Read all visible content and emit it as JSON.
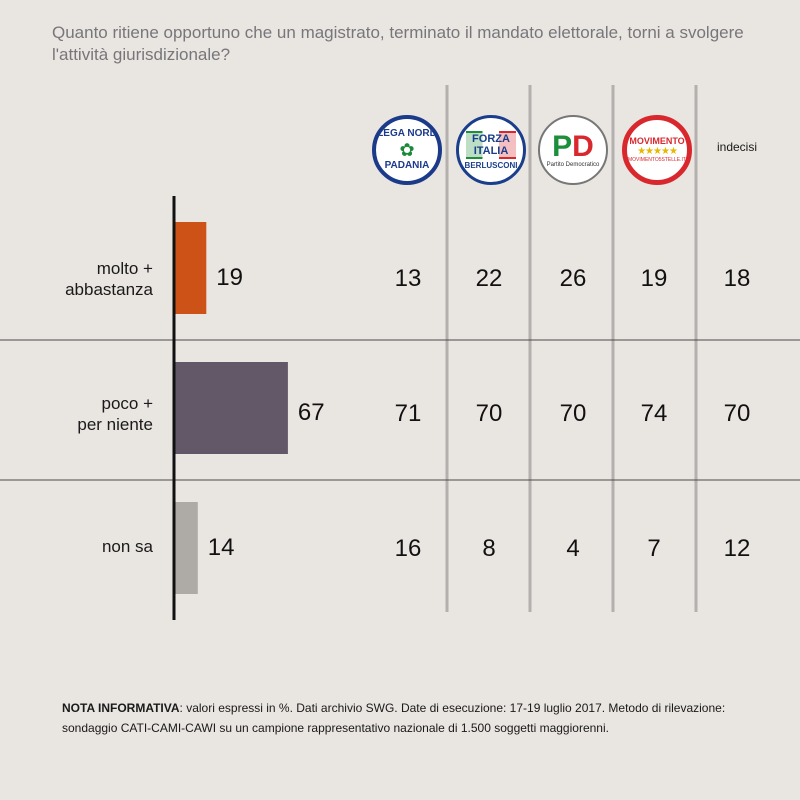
{
  "question": "Quanto ritiene opportuno che un magistrato, terminato il mandato elettorale, torni a svolgere l'attività giurisdizionale?",
  "colors": {
    "bar_molto": "#cc5218",
    "bar_poco": "#625868",
    "bar_nonsa": "#aeaba7",
    "separator": "#b3b0ad",
    "rule": "#4a4a4a",
    "axis": "#111111"
  },
  "logos": {
    "lega": {
      "name": "lega-nord-logo",
      "top": "LEGA NORD",
      "mid": "✿",
      "bottom": "PADANIA"
    },
    "forza": {
      "name": "forza-italia-logo",
      "top": "FORZA ITALIA",
      "bottom": "BERLUSCONI"
    },
    "pd": {
      "name": "partito-democratico-logo",
      "p": "P",
      "d": "D",
      "bottom": "Partito Democratico"
    },
    "m5s": {
      "name": "movimento-5-stelle-logo",
      "top": "MOVIMENTO",
      "stars": "★★★★★",
      "bottom": "MOVIMENTO5STELLE.IT"
    }
  },
  "undecided_label": "indecisi",
  "chart_data": {
    "type": "bar",
    "orientation": "horizontal",
    "categories": [
      "molto + abbastanza",
      "poco + per niente",
      "non sa"
    ],
    "series": [
      {
        "values": [
          19,
          67,
          14
        ]
      }
    ],
    "table": {
      "columns": [
        "Lega Nord",
        "Forza Italia",
        "Partito Democratico",
        "Movimento 5 Stelle",
        "indecisi"
      ],
      "rows": [
        [
          13,
          22,
          26,
          19,
          18
        ],
        [
          71,
          70,
          70,
          74,
          70
        ],
        [
          16,
          8,
          4,
          7,
          12
        ]
      ]
    },
    "xlim": [
      0,
      100
    ],
    "grid": false
  },
  "footnote": {
    "bold": "NOTA INFORMATIVA",
    "text": ": valori espressi in %. Dati archivio SWG. Date di esecuzione: 17-19 luglio 2017. Metodo di rilevazione: sondaggio CATI-CAMI-CAWI su un campione rappresentativo nazionale di 1.500 soggetti maggiorenni."
  }
}
